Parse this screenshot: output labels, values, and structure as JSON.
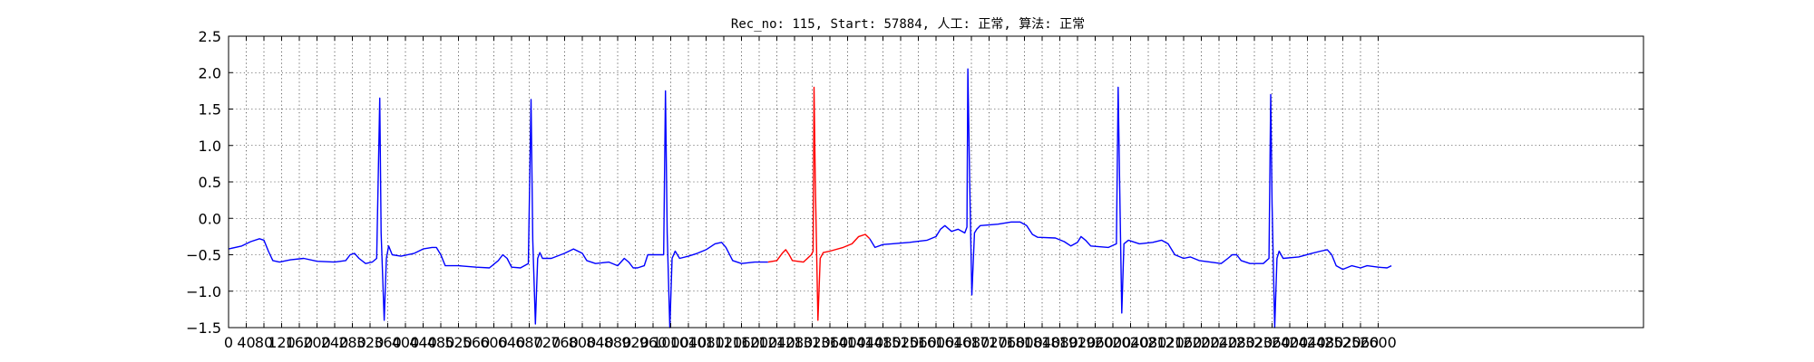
{
  "chart_data": {
    "type": "line",
    "title": "Rec_no: 115, Start: 57884, 人工: 正常, 算法: 正常",
    "xlabel": "",
    "ylabel": "",
    "xlim": [
      0,
      3200
    ],
    "ylim": [
      -1.5,
      2.5
    ],
    "grid": true,
    "grid_style": "dotted",
    "x_tick_step": 40,
    "yticks": [
      -1.5,
      -1.0,
      -0.5,
      0.0,
      0.5,
      1.0,
      1.5,
      2.0,
      2.5
    ],
    "ytick_labels": [
      "−1.5",
      "−1.0",
      "−0.5",
      "0.0",
      "0.5",
      "1.0",
      "1.5",
      "2.0",
      "2.5"
    ],
    "xtick_labels": [
      "0",
      "40",
      "80",
      "120",
      "160",
      "200",
      "240",
      "280",
      "320",
      "360",
      "400",
      "440",
      "480",
      "520",
      "560",
      "600",
      "640",
      "680",
      "720",
      "760",
      "800",
      "840",
      "880",
      "920",
      "960",
      "1000",
      "1040",
      "1080",
      "1120",
      "1160",
      "1200",
      "1240",
      "1280",
      "1320",
      "1360",
      "1400",
      "1440",
      "1480",
      "1520",
      "1560",
      "1600",
      "1640",
      "1680",
      "1720",
      "1760",
      "1800",
      "1840",
      "1880",
      "1920",
      "1960",
      "2000",
      "2040",
      "2080",
      "2120",
      "2160",
      "2200",
      "2240",
      "2280",
      "2320",
      "2360",
      "2400",
      "2440",
      "2480",
      "2520",
      "2560",
      "2600"
    ],
    "series": [
      {
        "color": "#0000ff",
        "points": [
          [
            0,
            -0.42
          ],
          [
            30,
            -0.38
          ],
          [
            50,
            -0.32
          ],
          [
            70,
            -0.28
          ],
          [
            80,
            -0.3
          ],
          [
            90,
            -0.45
          ],
          [
            100,
            -0.58
          ],
          [
            115,
            -0.6
          ],
          [
            140,
            -0.57
          ],
          [
            170,
            -0.55
          ],
          [
            200,
            -0.59
          ],
          [
            240,
            -0.6
          ],
          [
            265,
            -0.58
          ],
          [
            275,
            -0.5
          ],
          [
            285,
            -0.48
          ],
          [
            295,
            -0.55
          ],
          [
            310,
            -0.62
          ],
          [
            325,
            -0.6
          ],
          [
            335,
            -0.55
          ],
          [
            342,
            1.65
          ],
          [
            345,
            -0.2
          ],
          [
            352,
            -1.4
          ],
          [
            357,
            -0.55
          ],
          [
            362,
            -0.38
          ],
          [
            370,
            -0.5
          ],
          [
            390,
            -0.52
          ],
          [
            420,
            -0.48
          ],
          [
            440,
            -0.42
          ],
          [
            460,
            -0.4
          ],
          [
            470,
            -0.4
          ],
          [
            480,
            -0.5
          ],
          [
            490,
            -0.65
          ],
          [
            520,
            -0.65
          ],
          [
            560,
            -0.67
          ],
          [
            590,
            -0.68
          ],
          [
            610,
            -0.58
          ],
          [
            620,
            -0.5
          ],
          [
            630,
            -0.55
          ],
          [
            640,
            -0.67
          ],
          [
            660,
            -0.68
          ],
          [
            678,
            -0.62
          ],
          [
            684,
            1.63
          ],
          [
            688,
            -0.3
          ],
          [
            694,
            -1.45
          ],
          [
            699,
            -0.55
          ],
          [
            704,
            -0.47
          ],
          [
            710,
            -0.55
          ],
          [
            730,
            -0.55
          ],
          [
            760,
            -0.48
          ],
          [
            780,
            -0.42
          ],
          [
            800,
            -0.48
          ],
          [
            810,
            -0.58
          ],
          [
            830,
            -0.62
          ],
          [
            860,
            -0.6
          ],
          [
            880,
            -0.65
          ],
          [
            895,
            -0.55
          ],
          [
            905,
            -0.6
          ],
          [
            915,
            -0.68
          ],
          [
            925,
            -0.68
          ],
          [
            940,
            -0.65
          ],
          [
            948,
            -0.5
          ],
          [
            984,
            -0.5
          ],
          [
            988,
            1.75
          ],
          [
            992,
            -0.2
          ],
          [
            998,
            -1.5
          ],
          [
            1003,
            -0.55
          ],
          [
            1010,
            -0.45
          ],
          [
            1020,
            -0.55
          ],
          [
            1040,
            -0.52
          ],
          [
            1060,
            -0.48
          ],
          [
            1080,
            -0.43
          ],
          [
            1100,
            -0.35
          ],
          [
            1115,
            -0.33
          ],
          [
            1125,
            -0.4
          ],
          [
            1140,
            -0.58
          ],
          [
            1160,
            -0.62
          ],
          [
            1190,
            -0.6
          ],
          [
            1220,
            -0.6
          ]
        ]
      },
      {
        "color": "#ff0000",
        "points": [
          [
            1220,
            -0.6
          ],
          [
            1240,
            -0.58
          ],
          [
            1252,
            -0.48
          ],
          [
            1260,
            -0.43
          ],
          [
            1268,
            -0.5
          ],
          [
            1275,
            -0.58
          ],
          [
            1300,
            -0.6
          ],
          [
            1318,
            -0.5
          ],
          [
            1322,
            -0.45
          ],
          [
            1324,
            1.8
          ],
          [
            1327,
            0.5
          ],
          [
            1333,
            -1.4
          ],
          [
            1338,
            -0.55
          ],
          [
            1345,
            -0.47
          ],
          [
            1360,
            -0.45
          ],
          [
            1390,
            -0.4
          ],
          [
            1410,
            -0.35
          ],
          [
            1425,
            -0.25
          ],
          [
            1440,
            -0.22
          ],
          [
            1450,
            -0.28
          ]
        ]
      },
      {
        "color": "#0000ff",
        "points": [
          [
            1450,
            -0.28
          ],
          [
            1462,
            -0.4
          ],
          [
            1480,
            -0.36
          ],
          [
            1500,
            -0.35
          ],
          [
            1540,
            -0.33
          ],
          [
            1580,
            -0.3
          ],
          [
            1600,
            -0.25
          ],
          [
            1610,
            -0.15
          ],
          [
            1620,
            -0.1
          ],
          [
            1635,
            -0.18
          ],
          [
            1650,
            -0.15
          ],
          [
            1665,
            -0.2
          ],
          [
            1670,
            -0.12
          ],
          [
            1672,
            2.05
          ],
          [
            1676,
            0.5
          ],
          [
            1681,
            -1.05
          ],
          [
            1687,
            -0.2
          ],
          [
            1692,
            -0.15
          ],
          [
            1700,
            -0.1
          ],
          [
            1740,
            -0.08
          ],
          [
            1770,
            -0.05
          ],
          [
            1790,
            -0.05
          ],
          [
            1805,
            -0.1
          ],
          [
            1818,
            -0.22
          ],
          [
            1830,
            -0.26
          ],
          [
            1870,
            -0.27
          ],
          [
            1890,
            -0.32
          ],
          [
            1905,
            -0.38
          ],
          [
            1920,
            -0.33
          ],
          [
            1928,
            -0.25
          ],
          [
            1938,
            -0.3
          ],
          [
            1950,
            -0.38
          ],
          [
            1990,
            -0.4
          ],
          [
            2008,
            -0.35
          ],
          [
            2012,
            1.8
          ],
          [
            2016,
            0.2
          ],
          [
            2020,
            -1.3
          ],
          [
            2025,
            -0.35
          ],
          [
            2035,
            -0.3
          ],
          [
            2060,
            -0.35
          ],
          [
            2090,
            -0.33
          ],
          [
            2110,
            -0.3
          ],
          [
            2125,
            -0.35
          ],
          [
            2140,
            -0.5
          ],
          [
            2160,
            -0.55
          ],
          [
            2175,
            -0.53
          ],
          [
            2195,
            -0.58
          ],
          [
            2220,
            -0.6
          ],
          [
            2245,
            -0.62
          ],
          [
            2260,
            -0.55
          ],
          [
            2270,
            -0.5
          ],
          [
            2280,
            -0.5
          ],
          [
            2290,
            -0.58
          ],
          [
            2310,
            -0.62
          ],
          [
            2340,
            -0.62
          ],
          [
            2353,
            -0.55
          ],
          [
            2357,
            1.7
          ],
          [
            2360,
            0.2
          ],
          [
            2366,
            -1.5
          ],
          [
            2371,
            -0.55
          ],
          [
            2376,
            -0.45
          ],
          [
            2385,
            -0.55
          ],
          [
            2420,
            -0.53
          ],
          [
            2450,
            -0.48
          ],
          [
            2470,
            -0.45
          ],
          [
            2485,
            -0.43
          ],
          [
            2495,
            -0.5
          ],
          [
            2505,
            -0.65
          ],
          [
            2520,
            -0.7
          ],
          [
            2540,
            -0.65
          ],
          [
            2560,
            -0.68
          ],
          [
            2575,
            -0.65
          ],
          [
            2600,
            -0.67
          ],
          [
            2620,
            -0.68
          ],
          [
            2630,
            -0.65
          ]
        ]
      }
    ]
  }
}
